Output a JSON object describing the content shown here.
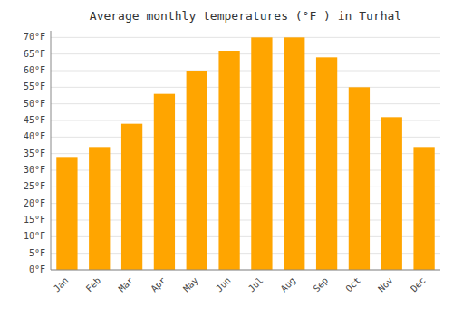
{
  "chart_data": {
    "type": "bar",
    "title": "Average monthly temperatures (°F ) in Turhal",
    "categories": [
      "Jan",
      "Feb",
      "Mar",
      "Apr",
      "May",
      "Jun",
      "Jul",
      "Aug",
      "Sep",
      "Oct",
      "Nov",
      "Dec"
    ],
    "values": [
      34,
      37,
      44,
      53,
      60,
      66,
      70,
      70,
      64,
      55,
      46,
      37
    ],
    "color": "#FFA500",
    "ylim": [
      0,
      72
    ],
    "yticks": [
      {
        "value": 0,
        "label": "0°F"
      },
      {
        "value": 5,
        "label": "5°F"
      },
      {
        "value": 10,
        "label": "10°F"
      },
      {
        "value": 15,
        "label": "15°F"
      },
      {
        "value": 20,
        "label": "20°F"
      },
      {
        "value": 25,
        "label": "25°F"
      },
      {
        "value": 30,
        "label": "30°F"
      },
      {
        "value": 35,
        "label": "35°F"
      },
      {
        "value": 40,
        "label": "40°F"
      },
      {
        "value": 45,
        "label": "45°F"
      },
      {
        "value": 50,
        "label": "50°F"
      },
      {
        "value": 55,
        "label": "55°F"
      },
      {
        "value": 60,
        "label": "60°F"
      },
      {
        "value": 65,
        "label": "65°F"
      },
      {
        "value": 70,
        "label": "70°F"
      }
    ],
    "grid": true
  }
}
